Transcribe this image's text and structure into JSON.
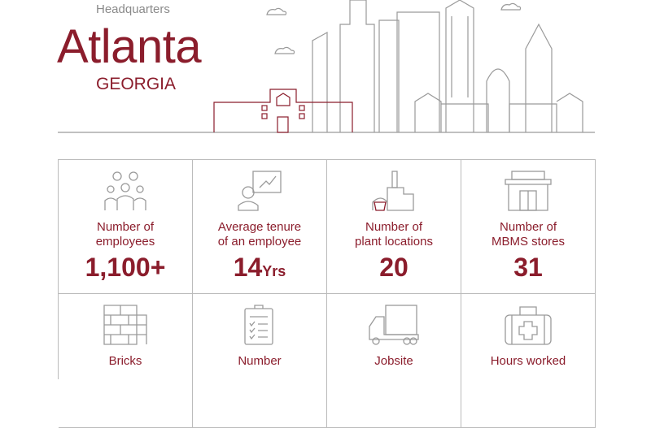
{
  "header": {
    "subtitle": "Headquarters",
    "city": "Atlanta",
    "state": "GEORGIA"
  },
  "colors": {
    "accent": "#8b1d2c",
    "line": "#9a9a9a"
  },
  "stats": [
    {
      "icon": "people-group-icon",
      "label_line1": "Number of",
      "label_line2": "employees",
      "value": "1,100+",
      "unit": ""
    },
    {
      "icon": "presenter-chart-icon",
      "label_line1": "Average tenure",
      "label_line2": "of an employee",
      "value": "14",
      "unit": "Yrs"
    },
    {
      "icon": "factory-icon",
      "label_line1": "Number of",
      "label_line2": "plant locations",
      "value": "20",
      "unit": ""
    },
    {
      "icon": "storefront-icon",
      "label_line1": "Number of",
      "label_line2": "MBMS stores",
      "value": "31",
      "unit": ""
    },
    {
      "icon": "brick-wall-icon",
      "label_line1": "Bricks",
      "label_line2": "",
      "value": "",
      "unit": ""
    },
    {
      "icon": "clipboard-checklist-icon",
      "label_line1": "Number",
      "label_line2": "",
      "value": "",
      "unit": ""
    },
    {
      "icon": "delivery-truck-icon",
      "label_line1": "Jobsite",
      "label_line2": "",
      "value": "",
      "unit": ""
    },
    {
      "icon": "first-aid-kit-icon",
      "label_line1": "Hours worked",
      "label_line2": "",
      "value": "",
      "unit": ""
    }
  ]
}
